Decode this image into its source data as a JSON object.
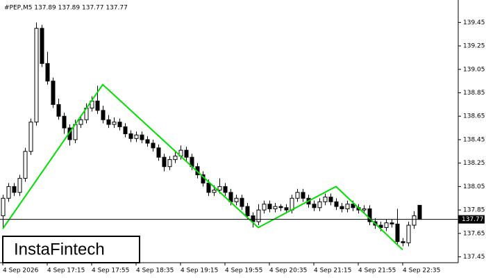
{
  "chart_data": {
    "type": "candlestick",
    "title": "#PEP,M5  137.89 137.89 137.77 137.77",
    "watermark": "InstaFintech",
    "categories": [
      "4 Sep 2026",
      null,
      null,
      null,
      null,
      null,
      null,
      null,
      "4 Sep 17:15",
      null,
      null,
      null,
      null,
      null,
      null,
      null,
      "4 Sep 17:55",
      null,
      null,
      null,
      null,
      null,
      null,
      null,
      "4 Sep 18:35",
      null,
      null,
      null,
      null,
      null,
      null,
      null,
      "4 Sep 19:15",
      null,
      null,
      null,
      null,
      null,
      null,
      null,
      "4 Sep 19:55",
      null,
      null,
      null,
      null,
      null,
      null,
      null,
      "4 Sep 20:35",
      null,
      null,
      null,
      null,
      null,
      null,
      null,
      "4 Sep 21:15",
      null,
      null,
      null,
      null,
      null,
      null,
      null,
      "4 Sep 21:55",
      null,
      null,
      null,
      null,
      null,
      null,
      null,
      "4 Sep 22:35",
      null,
      null,
      null
    ],
    "open": [
      137.8,
      137.95,
      138.05,
      138.0,
      138.12,
      138.35,
      138.6,
      139.4,
      139.1,
      138.95,
      138.75,
      138.65,
      138.55,
      138.45,
      138.58,
      138.62,
      138.72,
      138.78,
      138.7,
      138.62,
      138.58,
      138.6,
      138.56,
      138.5,
      138.46,
      138.49,
      138.45,
      138.42,
      138.38,
      138.3,
      138.22,
      138.28,
      138.31,
      138.36,
      138.3,
      138.22,
      138.15,
      138.08,
      138.0,
      138.02,
      138.05,
      138.0,
      137.92,
      137.95,
      137.88,
      137.8,
      137.75,
      137.85,
      137.9,
      137.86,
      137.88,
      137.87,
      137.85,
      137.95,
      138.0,
      137.95,
      137.9,
      137.87,
      137.92,
      137.96,
      137.92,
      137.88,
      137.86,
      137.9,
      137.87,
      137.85,
      137.86,
      137.75,
      137.72,
      137.7,
      137.74,
      137.73,
      137.58,
      137.57,
      137.72,
      137.89
    ],
    "high": [
      137.98,
      138.08,
      138.08,
      138.15,
      138.38,
      138.63,
      139.45,
      139.43,
      139.2,
      138.98,
      138.8,
      138.68,
      138.58,
      138.62,
      138.66,
      138.76,
      138.82,
      138.91,
      138.74,
      138.66,
      138.64,
      138.63,
      138.59,
      138.53,
      138.52,
      138.52,
      138.48,
      138.45,
      138.41,
      138.33,
      138.31,
      138.35,
      138.4,
      138.39,
      138.33,
      138.25,
      138.18,
      138.11,
      138.06,
      138.12,
      138.08,
      138.03,
      137.98,
      137.98,
      137.91,
      137.83,
      137.9,
      137.93,
      137.93,
      137.91,
      137.9,
      137.9,
      137.98,
      138.03,
      138.03,
      137.98,
      137.93,
      137.95,
      137.99,
      137.99,
      137.95,
      137.91,
      137.93,
      137.93,
      137.9,
      137.89,
      137.89,
      137.78,
      137.75,
      137.77,
      137.77,
      137.86,
      137.61,
      137.75,
      137.84,
      137.89
    ],
    "low": [
      137.7,
      137.92,
      137.97,
      137.97,
      138.09,
      138.32,
      138.57,
      139.07,
      138.92,
      138.72,
      138.62,
      138.5,
      138.4,
      138.42,
      138.55,
      138.59,
      138.69,
      138.67,
      138.59,
      138.55,
      138.55,
      138.53,
      138.47,
      138.43,
      138.43,
      138.42,
      138.39,
      138.35,
      138.27,
      138.18,
      138.19,
      138.25,
      138.28,
      138.27,
      138.19,
      138.12,
      138.05,
      137.97,
      137.97,
      137.99,
      137.97,
      137.89,
      137.89,
      137.85,
      137.77,
      137.7,
      137.72,
      137.82,
      137.83,
      137.83,
      137.84,
      137.82,
      137.82,
      137.92,
      137.92,
      137.87,
      137.84,
      137.84,
      137.89,
      137.89,
      137.85,
      137.83,
      137.83,
      137.84,
      137.82,
      137.82,
      137.72,
      137.69,
      137.67,
      137.67,
      137.7,
      137.55,
      137.54,
      137.54,
      137.69,
      137.77
    ],
    "close": [
      137.95,
      138.05,
      138.0,
      138.12,
      138.35,
      138.6,
      139.4,
      139.1,
      138.95,
      138.75,
      138.65,
      138.55,
      138.45,
      138.58,
      138.62,
      138.72,
      138.78,
      138.7,
      138.62,
      138.58,
      138.6,
      138.56,
      138.5,
      138.46,
      138.49,
      138.45,
      138.42,
      138.38,
      138.3,
      138.22,
      138.28,
      138.31,
      138.36,
      138.3,
      138.22,
      138.15,
      138.08,
      138.0,
      138.02,
      138.05,
      138.0,
      137.92,
      137.95,
      137.88,
      137.8,
      137.75,
      137.85,
      137.9,
      137.86,
      137.88,
      137.87,
      137.85,
      137.95,
      138.0,
      137.95,
      137.9,
      137.87,
      137.92,
      137.96,
      137.92,
      137.88,
      137.86,
      137.9,
      137.87,
      137.85,
      137.86,
      137.75,
      137.72,
      137.7,
      137.74,
      137.73,
      137.58,
      137.57,
      137.72,
      137.8,
      137.77
    ],
    "up_color": "#ffffff",
    "down_color": "#000000",
    "pattern": {
      "color": "#00dd00",
      "x": [
        0,
        18,
        46,
        60,
        72
      ],
      "values": [
        137.69,
        138.92,
        137.7,
        138.05,
        137.51
      ]
    },
    "last_price": 137.77,
    "ylim": [
      137.4,
      139.63
    ],
    "yticks": [
      139.45,
      139.25,
      139.05,
      138.85,
      138.65,
      138.45,
      138.25,
      138.05,
      137.85,
      137.65,
      137.45
    ]
  }
}
